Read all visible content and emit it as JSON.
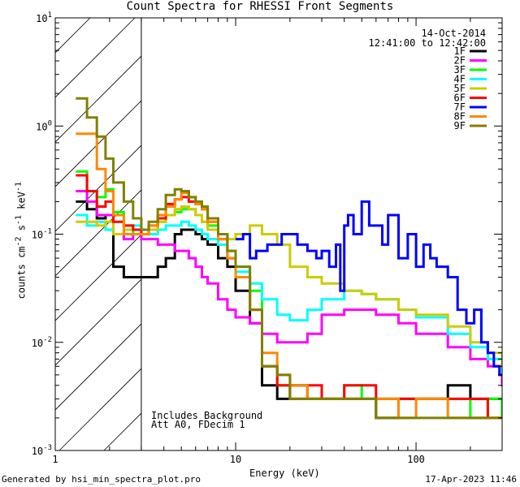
{
  "title": "Count Spectra for RHESSI Front Segments",
  "date": "14-Oct-2014",
  "time_range": "12:41:00 to 12:42:00",
  "notes": [
    "Includes Background",
    "Att A0, FDecim 1"
  ],
  "footer": {
    "left": "Generated by hsi_min_spectra_plot.pro",
    "right": "17-Apr-2023 11:46"
  },
  "chart_data": {
    "type": "line",
    "title": "Count Spectra for RHESSI Front Segments",
    "xlabel": "Energy (keV)",
    "ylabel": "counts cm-2 s-1 keV-1",
    "xscale": "log",
    "yscale": "log",
    "xlim": [
      1,
      300
    ],
    "ylim": [
      0.001,
      10
    ],
    "x_ticks": [
      {
        "v": 1,
        "label": "1"
      },
      {
        "v": 10,
        "label": "10"
      },
      {
        "v": 100,
        "label": "100"
      }
    ],
    "y_ticks": [
      {
        "exp": 1,
        "label": "10^1"
      },
      {
        "exp": 0,
        "label": "10^0"
      },
      {
        "exp": -1,
        "label": "10^-1"
      },
      {
        "exp": -2,
        "label": "10^-2"
      },
      {
        "exp": -3,
        "label": "10^-3"
      }
    ],
    "shaded_region": [
      1,
      3
    ],
    "legend_position": "top-right",
    "series": [
      {
        "name": "1F",
        "color": "#000000",
        "x": [
          1.3,
          1.5,
          1.7,
          1.9,
          2.1,
          2.4,
          2.7,
          3.0,
          3.3,
          3.7,
          4.1,
          4.6,
          5.0,
          5.5,
          6.0,
          6.5,
          7.0,
          8.0,
          9.0,
          10,
          12,
          14,
          17,
          20,
          25,
          30,
          40,
          50,
          60,
          80,
          100,
          150,
          200,
          250,
          300
        ],
        "y": [
          0.2,
          0.17,
          0.14,
          0.15,
          0.05,
          0.04,
          0.04,
          0.04,
          0.04,
          0.05,
          0.06,
          0.1,
          0.11,
          0.11,
          0.1,
          0.09,
          0.08,
          0.06,
          0.05,
          0.03,
          0.015,
          0.004,
          0.003,
          0.004,
          0.003,
          0.003,
          0.003,
          0.003,
          0.002,
          0.003,
          0.003,
          0.004,
          0.003,
          0.003,
          0.002
        ]
      },
      {
        "name": "2F",
        "color": "#ff00ff",
        "x": [
          1.3,
          1.5,
          1.7,
          1.9,
          2.1,
          2.4,
          2.7,
          3.0,
          3.3,
          3.7,
          4.1,
          4.6,
          5.0,
          5.5,
          6.0,
          6.5,
          7.0,
          8.0,
          9.0,
          10,
          12,
          14,
          17,
          20,
          25,
          30,
          40,
          50,
          60,
          80,
          100,
          150,
          200,
          250,
          300
        ],
        "y": [
          0.25,
          0.2,
          0.15,
          0.15,
          0.1,
          0.09,
          0.1,
          0.09,
          0.09,
          0.08,
          0.08,
          0.07,
          0.07,
          0.06,
          0.05,
          0.04,
          0.035,
          0.025,
          0.02,
          0.017,
          0.015,
          0.012,
          0.01,
          0.01,
          0.012,
          0.018,
          0.02,
          0.02,
          0.018,
          0.015,
          0.012,
          0.009,
          0.007,
          0.006,
          0.004
        ]
      },
      {
        "name": "3F",
        "color": "#00ff00",
        "x": [
          1.3,
          1.5,
          1.7,
          1.9,
          2.1,
          2.4,
          2.7,
          3.0,
          3.3,
          3.7,
          4.1,
          4.6,
          5.0,
          5.5,
          6.0,
          6.5,
          7.0,
          8.0,
          9.0,
          10,
          12,
          14,
          17,
          20,
          25,
          30,
          40,
          50,
          60,
          80,
          100,
          150,
          200,
          250,
          300
        ],
        "y": [
          0.38,
          0.25,
          0.22,
          0.26,
          0.16,
          0.12,
          0.1,
          0.1,
          0.11,
          0.13,
          0.15,
          0.16,
          0.17,
          0.17,
          0.15,
          0.13,
          0.12,
          0.1,
          0.07,
          0.05,
          0.03,
          0.006,
          0.004,
          0.003,
          0.003,
          0.003,
          0.004,
          0.003,
          0.003,
          0.003,
          0.003,
          0.003,
          0.002,
          0.003,
          0.002
        ]
      },
      {
        "name": "4F",
        "color": "#00ffff",
        "x": [
          1.3,
          1.5,
          1.7,
          1.9,
          2.1,
          2.4,
          2.7,
          3.0,
          3.3,
          3.7,
          4.1,
          4.6,
          5.0,
          5.5,
          6.0,
          6.5,
          7.0,
          8.0,
          9.0,
          10,
          12,
          14,
          17,
          20,
          25,
          30,
          40,
          50,
          60,
          80,
          100,
          150,
          200,
          250,
          300
        ],
        "y": [
          0.15,
          0.12,
          0.13,
          0.11,
          0.1,
          0.11,
          0.12,
          0.1,
          0.1,
          0.11,
          0.12,
          0.12,
          0.13,
          0.12,
          0.11,
          0.1,
          0.09,
          0.08,
          0.06,
          0.045,
          0.035,
          0.025,
          0.018,
          0.016,
          0.02,
          0.025,
          0.03,
          0.028,
          0.025,
          0.02,
          0.017,
          0.012,
          0.009,
          0.007,
          0.005
        ]
      },
      {
        "name": "5F",
        "color": "#cccc00",
        "x": [
          1.3,
          1.5,
          1.7,
          1.9,
          2.1,
          2.4,
          2.7,
          3.0,
          3.3,
          3.7,
          4.1,
          4.6,
          5.0,
          5.5,
          6.0,
          6.5,
          7.0,
          8.0,
          9.0,
          10,
          12,
          14,
          17,
          20,
          25,
          30,
          40,
          50,
          60,
          80,
          100,
          150,
          200,
          250,
          300
        ],
        "y": [
          0.13,
          0.13,
          0.12,
          0.13,
          0.1,
          0.11,
          0.11,
          0.11,
          0.11,
          0.13,
          0.15,
          0.17,
          0.18,
          0.17,
          0.15,
          0.13,
          0.11,
          0.1,
          0.09,
          0.1,
          0.12,
          0.1,
          0.08,
          0.05,
          0.04,
          0.035,
          0.03,
          0.028,
          0.025,
          0.02,
          0.018,
          0.014,
          0.01,
          0.008,
          0.006
        ]
      },
      {
        "name": "6F",
        "color": "#ff0000",
        "x": [
          1.3,
          1.5,
          1.7,
          1.9,
          2.1,
          2.4,
          2.7,
          3.0,
          3.3,
          3.7,
          4.1,
          4.6,
          5.0,
          5.5,
          6.0,
          6.5,
          7.0,
          8.0,
          9.0,
          10,
          12,
          14,
          17,
          20,
          25,
          30,
          40,
          50,
          60,
          80,
          100,
          150,
          200,
          250,
          300
        ],
        "y": [
          0.35,
          0.25,
          0.18,
          0.2,
          0.13,
          0.12,
          0.11,
          0.1,
          0.12,
          0.14,
          0.19,
          0.21,
          0.22,
          0.2,
          0.19,
          0.17,
          0.13,
          0.09,
          0.06,
          0.04,
          0.02,
          0.006,
          0.004,
          0.003,
          0.004,
          0.003,
          0.004,
          0.004,
          0.003,
          0.003,
          0.003,
          0.003,
          0.003,
          0.002,
          0.002
        ]
      },
      {
        "name": "7F",
        "color": "#0000ff",
        "x": [
          10,
          11,
          12,
          13,
          15,
          18,
          22,
          25,
          28,
          30,
          33,
          36,
          38,
          40,
          42,
          45,
          50,
          55,
          60,
          65,
          70,
          80,
          90,
          100,
          110,
          120,
          130,
          150,
          170,
          190,
          210,
          230,
          250,
          270,
          290
        ],
        "y": [
          0.09,
          0.1,
          0.06,
          0.07,
          0.08,
          0.1,
          0.08,
          0.07,
          0.06,
          0.07,
          0.05,
          0.08,
          0.03,
          0.12,
          0.15,
          0.1,
          0.2,
          0.12,
          0.12,
          0.08,
          0.15,
          0.06,
          0.1,
          0.05,
          0.08,
          0.06,
          0.05,
          0.04,
          0.02,
          0.015,
          0.02,
          0.01,
          0.008,
          0.006,
          0.005
        ]
      },
      {
        "name": "8F",
        "color": "#ff8800",
        "x": [
          1.3,
          1.5,
          1.7,
          1.9,
          2.1,
          2.4,
          2.7,
          3.0,
          3.3,
          3.7,
          4.1,
          4.6,
          5.0,
          5.5,
          6.0,
          6.5,
          7.0,
          8.0,
          9.0,
          10,
          12,
          14,
          17,
          20,
          25,
          30,
          40,
          50,
          60,
          80,
          100,
          150,
          200,
          250,
          300
        ],
        "y": [
          0.85,
          0.85,
          0.4,
          0.25,
          0.15,
          0.1,
          0.1,
          0.1,
          0.12,
          0.15,
          0.18,
          0.21,
          0.24,
          0.22,
          0.19,
          0.17,
          0.13,
          0.09,
          0.06,
          0.04,
          0.02,
          0.008,
          0.005,
          0.004,
          0.003,
          0.003,
          0.003,
          0.003,
          0.003,
          0.002,
          0.003,
          0.002,
          0.002,
          0.002,
          0.002
        ]
      },
      {
        "name": "9F",
        "color": "#808000",
        "x": [
          1.3,
          1.5,
          1.7,
          1.9,
          2.1,
          2.4,
          2.7,
          3.0,
          3.3,
          3.7,
          4.1,
          4.6,
          5.0,
          5.5,
          6.0,
          6.5,
          7.0,
          8.0,
          9.0,
          10,
          12,
          14,
          17,
          20,
          25,
          30,
          40,
          50,
          60,
          80,
          100,
          150,
          200,
          250,
          300
        ],
        "y": [
          1.8,
          1.2,
          0.8,
          0.5,
          0.3,
          0.2,
          0.14,
          0.11,
          0.13,
          0.17,
          0.23,
          0.26,
          0.25,
          0.22,
          0.2,
          0.18,
          0.14,
          0.1,
          0.07,
          0.05,
          0.02,
          0.006,
          0.005,
          0.003,
          0.003,
          0.003,
          0.003,
          0.003,
          0.002,
          0.002,
          0.002,
          0.002,
          0.002,
          0.002,
          0.002
        ]
      }
    ]
  }
}
